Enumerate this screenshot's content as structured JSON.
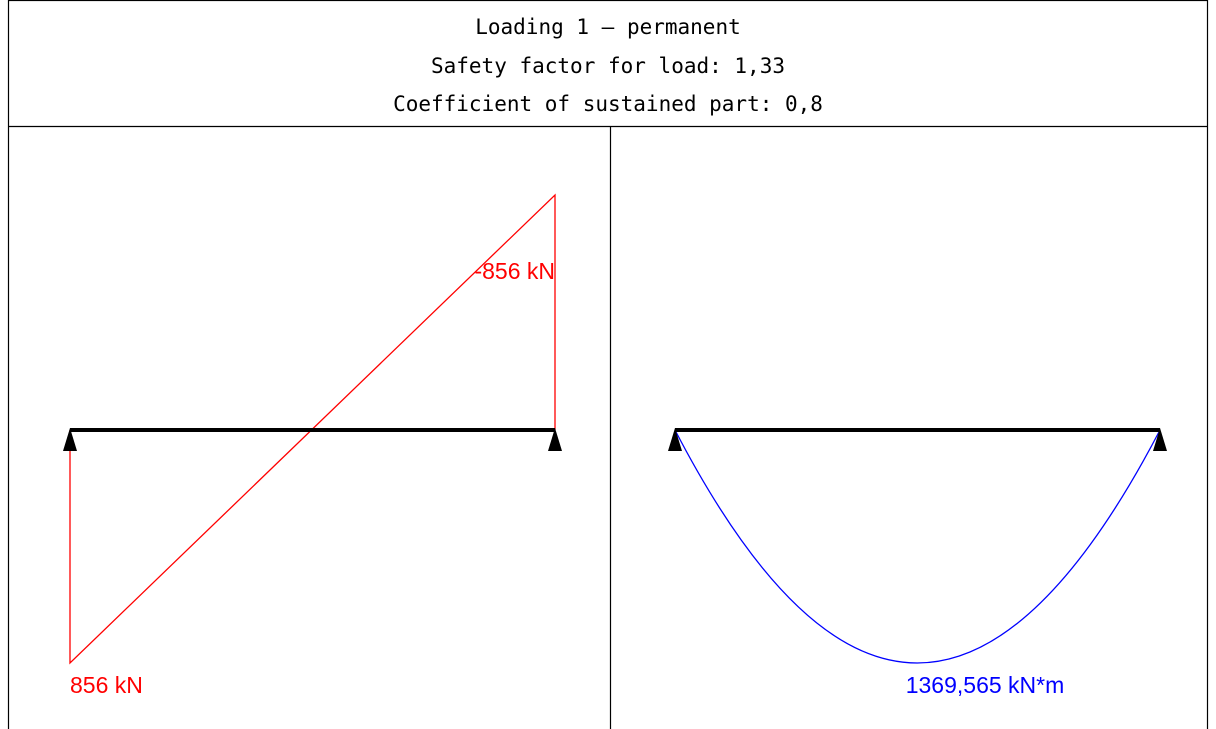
{
  "header": {
    "lines": [
      "Loading 1 – permanent",
      "Safety factor for load: 1,33",
      "Coefficient of sustained part: 0,8"
    ]
  },
  "shear": {
    "labels": [
      "-856 kN",
      "856 kN"
    ]
  },
  "moment": {
    "labels": [
      "1369,565 kN*m"
    ]
  }
}
